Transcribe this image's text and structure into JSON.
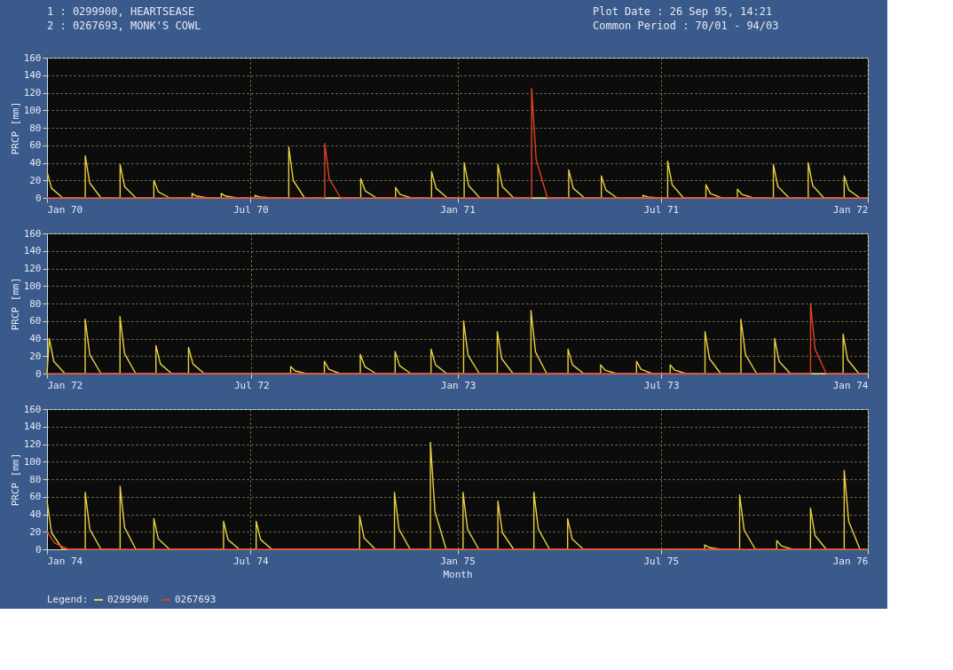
{
  "chart_data": [
    {
      "type": "line",
      "annotations": [
        "1 : 0299900,  HEARTSEASE",
        "2 : 0267693,  MONK'S COWL",
        "Plot Date      : 26 Sep 95, 14:21",
        "Common Period : 70/01 - 94/03"
      ],
      "ylabel": "PRCP [mm]",
      "xlim": [
        "1970-01-01",
        "1972-01-01"
      ],
      "xticks": [
        {
          "value": "1970-01-01",
          "label": "Jan 70"
        },
        {
          "value": "1970-07-01",
          "label": "Jul 70"
        },
        {
          "value": "1971-01-01",
          "label": "Jan 71"
        },
        {
          "value": "1971-07-01",
          "label": "Jul 71"
        },
        {
          "value": "1972-01-01",
          "label": "Jan 72"
        }
      ],
      "ylim": [
        0,
        160
      ],
      "yticks": [
        0,
        20,
        40,
        60,
        80,
        100,
        120,
        140,
        160
      ],
      "grid": true,
      "series": [
        {
          "color": "#e8d040",
          "x": [
            "1970-01-01",
            "1970-01-05",
            "1970-01-15",
            "1970-02-04",
            "1970-02-04",
            "1970-02-08",
            "1970-02-18",
            "1970-03-07",
            "1970-03-07",
            "1970-03-11",
            "1970-03-21",
            "1970-04-06",
            "1970-04-06",
            "1970-04-10",
            "1970-04-20",
            "1970-05-10",
            "1970-05-10",
            "1970-05-14",
            "1970-05-24",
            "1970-06-05",
            "1970-06-05",
            "1970-06-09",
            "1970-06-19",
            "1970-07-05",
            "1970-07-05",
            "1970-07-09",
            "1970-07-19",
            "1970-08-04",
            "1970-08-04",
            "1970-08-08",
            "1970-08-18",
            "1970-10-07",
            "1970-10-07",
            "1970-10-11",
            "1970-10-21",
            "1970-11-07",
            "1970-11-07",
            "1970-11-11",
            "1970-11-21",
            "1970-12-09",
            "1970-12-09",
            "1970-12-13",
            "1970-12-23",
            "1971-01-07",
            "1971-01-07",
            "1971-01-11",
            "1971-01-21",
            "1971-02-06",
            "1971-02-06",
            "1971-02-10",
            "1971-02-20",
            "1971-04-10",
            "1971-04-10",
            "1971-04-14",
            "1971-04-24",
            "1971-05-09",
            "1971-05-09",
            "1971-05-13",
            "1971-05-23",
            "1971-06-15",
            "1971-06-15",
            "1971-06-19",
            "1971-06-29",
            "1971-07-07",
            "1971-07-07",
            "1971-07-11",
            "1971-07-21",
            "1971-08-10",
            "1971-08-10",
            "1971-08-14",
            "1971-08-24",
            "1971-09-07",
            "1971-09-07",
            "1971-09-11",
            "1971-09-21",
            "1971-10-09",
            "1971-10-09",
            "1971-10-13",
            "1971-10-23",
            "1971-11-09",
            "1971-11-09",
            "1971-11-13",
            "1971-11-23",
            "1971-12-11",
            "1971-12-11",
            "1971-12-15",
            "1971-12-25",
            "1972-01-01"
          ],
          "values": [
            30,
            11,
            0,
            0,
            48,
            17,
            0,
            0,
            38,
            13,
            0,
            0,
            20,
            7,
            0,
            0,
            5,
            2,
            0,
            0,
            5,
            2,
            0,
            0,
            3,
            1,
            0,
            0,
            58,
            20,
            0,
            0,
            22,
            8,
            0,
            0,
            12,
            4,
            0,
            0,
            30,
            11,
            0,
            0,
            40,
            14,
            0,
            0,
            38,
            13,
            0,
            0,
            32,
            11,
            0,
            0,
            25,
            9,
            0,
            0,
            3,
            1,
            0,
            0,
            42,
            15,
            0,
            0,
            15,
            5,
            0,
            0,
            10,
            4,
            0,
            0,
            38,
            13,
            0,
            0,
            40,
            14,
            0,
            0,
            25,
            9,
            0,
            0
          ]
        },
        {
          "color": "#e04028",
          "x": [
            "1970-01-01",
            "1970-09-05",
            "1970-09-05",
            "1970-09-09",
            "1970-09-19",
            "1971-03-08",
            "1971-03-08",
            "1971-03-12",
            "1971-03-22",
            "1972-01-01"
          ],
          "values": [
            0,
            0,
            62,
            22,
            0,
            0,
            125,
            44,
            0,
            0
          ]
        }
      ]
    },
    {
      "type": "line",
      "ylabel": "PRCP [mm]",
      "xlim": [
        "1972-01-01",
        "1974-01-01"
      ],
      "xticks": [
        {
          "value": "1972-01-01",
          "label": "Jan 72"
        },
        {
          "value": "1972-07-01",
          "label": "Jul 72"
        },
        {
          "value": "1973-01-01",
          "label": "Jan 73"
        },
        {
          "value": "1973-07-01",
          "label": "Jul 73"
        },
        {
          "value": "1974-01-01",
          "label": "Jan 74"
        }
      ],
      "ylim": [
        0,
        160
      ],
      "yticks": [
        0,
        20,
        40,
        60,
        80,
        100,
        120,
        140,
        160
      ],
      "grid": true,
      "series": [
        {
          "color": "#e8d040",
          "x": [
            "1972-01-01",
            "1972-01-03",
            "1972-01-07",
            "1972-01-17",
            "1972-02-04",
            "1972-02-04",
            "1972-02-08",
            "1972-02-18",
            "1972-03-06",
            "1972-03-06",
            "1972-03-10",
            "1972-03-20",
            "1972-04-07",
            "1972-04-07",
            "1972-04-11",
            "1972-04-21",
            "1972-05-06",
            "1972-05-06",
            "1972-05-10",
            "1972-05-20",
            "1972-08-05",
            "1972-08-05",
            "1972-08-09",
            "1972-08-19",
            "1972-09-04",
            "1972-09-04",
            "1972-09-08",
            "1972-09-18",
            "1972-10-06",
            "1972-10-06",
            "1972-10-10",
            "1972-10-20",
            "1972-11-06",
            "1972-11-06",
            "1972-11-10",
            "1972-11-20",
            "1972-12-08",
            "1972-12-08",
            "1972-12-12",
            "1972-12-22",
            "1973-01-06",
            "1973-01-06",
            "1973-01-10",
            "1973-01-20",
            "1973-02-05",
            "1973-02-05",
            "1973-02-09",
            "1973-02-19",
            "1973-03-07",
            "1973-03-07",
            "1973-03-11",
            "1973-03-21",
            "1973-04-09",
            "1973-04-09",
            "1973-04-13",
            "1973-04-23",
            "1973-05-08",
            "1973-05-08",
            "1973-05-12",
            "1973-05-22",
            "1973-06-09",
            "1973-06-09",
            "1973-06-13",
            "1973-06-23",
            "1973-07-09",
            "1973-07-09",
            "1973-07-13",
            "1973-07-23",
            "1973-08-09",
            "1973-08-09",
            "1973-08-13",
            "1973-08-23",
            "1973-09-10",
            "1973-09-10",
            "1973-09-14",
            "1973-09-24",
            "1973-10-10",
            "1973-10-10",
            "1973-10-14",
            "1973-10-24",
            "1973-12-10",
            "1973-12-10",
            "1973-12-14",
            "1973-12-24",
            "1974-01-01"
          ],
          "values": [
            0,
            40,
            14,
            0,
            0,
            62,
            22,
            0,
            0,
            65,
            23,
            0,
            0,
            32,
            11,
            0,
            0,
            30,
            11,
            0,
            0,
            8,
            3,
            0,
            0,
            14,
            5,
            0,
            0,
            22,
            8,
            0,
            0,
            25,
            9,
            0,
            0,
            28,
            10,
            0,
            0,
            60,
            21,
            0,
            0,
            48,
            17,
            0,
            0,
            72,
            25,
            0,
            0,
            28,
            10,
            0,
            0,
            10,
            4,
            0,
            0,
            14,
            5,
            0,
            0,
            10,
            4,
            0,
            0,
            48,
            17,
            0,
            0,
            62,
            22,
            0,
            0,
            40,
            14,
            0,
            0,
            45,
            16,
            0,
            0
          ]
        },
        {
          "color": "#e04028",
          "x": [
            "1972-01-01",
            "1973-11-11",
            "1973-11-11",
            "1973-11-15",
            "1973-11-25",
            "1974-01-01"
          ],
          "values": [
            0,
            0,
            80,
            28,
            0,
            0
          ]
        }
      ]
    },
    {
      "type": "line",
      "ylabel": "PRCP [mm]",
      "xlabel": "Month",
      "legend": "bottom",
      "legend_title": "Legend:",
      "xlim": [
        "1974-01-01",
        "1976-01-01"
      ],
      "xticks": [
        {
          "value": "1974-01-01",
          "label": "Jan 74"
        },
        {
          "value": "1974-07-01",
          "label": "Jul 74"
        },
        {
          "value": "1975-01-01",
          "label": "Jan 75"
        },
        {
          "value": "1975-07-01",
          "label": "Jul 75"
        },
        {
          "value": "1976-01-01",
          "label": "Jan 76"
        }
      ],
      "ylim": [
        0,
        160
      ],
      "yticks": [
        0,
        20,
        40,
        60,
        80,
        100,
        120,
        140,
        160
      ],
      "grid": true,
      "series": [
        {
          "name": "0299900",
          "color": "#e8d040",
          "x": [
            "1974-01-01",
            "1974-01-05",
            "1974-01-15",
            "1974-02-04",
            "1974-02-04",
            "1974-02-08",
            "1974-02-18",
            "1974-03-07",
            "1974-03-07",
            "1974-03-11",
            "1974-03-21",
            "1974-04-06",
            "1974-04-06",
            "1974-04-10",
            "1974-04-20",
            "1974-06-07",
            "1974-06-07",
            "1974-06-11",
            "1974-06-21",
            "1974-07-06",
            "1974-07-06",
            "1974-07-10",
            "1974-07-20",
            "1974-10-06",
            "1974-10-06",
            "1974-10-10",
            "1974-10-20",
            "1974-11-06",
            "1974-11-06",
            "1974-11-10",
            "1974-11-20",
            "1974-12-08",
            "1974-12-08",
            "1974-12-12",
            "1974-12-22",
            "1975-01-06",
            "1975-01-06",
            "1975-01-10",
            "1975-01-20",
            "1975-02-06",
            "1975-02-06",
            "1975-02-10",
            "1975-02-20",
            "1975-03-10",
            "1975-03-10",
            "1975-03-14",
            "1975-03-24",
            "1975-04-09",
            "1975-04-09",
            "1975-04-13",
            "1975-04-23",
            "1975-08-09",
            "1975-08-09",
            "1975-08-13",
            "1975-08-23",
            "1975-09-09",
            "1975-09-09",
            "1975-09-13",
            "1975-09-23",
            "1975-10-12",
            "1975-10-12",
            "1975-10-16",
            "1975-10-26",
            "1975-11-11",
            "1975-11-11",
            "1975-11-15",
            "1975-11-25",
            "1975-12-11",
            "1975-12-11",
            "1975-12-15",
            "1975-12-25",
            "1976-01-01"
          ],
          "values": [
            55,
            19,
            0,
            0,
            65,
            23,
            0,
            0,
            72,
            25,
            0,
            0,
            35,
            12,
            0,
            0,
            32,
            11,
            0,
            0,
            32,
            11,
            0,
            0,
            38,
            13,
            0,
            0,
            65,
            23,
            0,
            0,
            122,
            43,
            0,
            0,
            65,
            23,
            0,
            0,
            55,
            19,
            0,
            0,
            65,
            23,
            0,
            0,
            35,
            12,
            0,
            0,
            5,
            2,
            0,
            0,
            62,
            22,
            0,
            0,
            10,
            4,
            0,
            0,
            47,
            16,
            0,
            0,
            90,
            32,
            0,
            0
          ]
        },
        {
          "name": "0267693",
          "color": "#e04028",
          "x": [
            "1974-01-01",
            "1974-01-08",
            "1974-01-20",
            "1976-01-01"
          ],
          "values": [
            20,
            7,
            0,
            0
          ]
        }
      ]
    }
  ]
}
